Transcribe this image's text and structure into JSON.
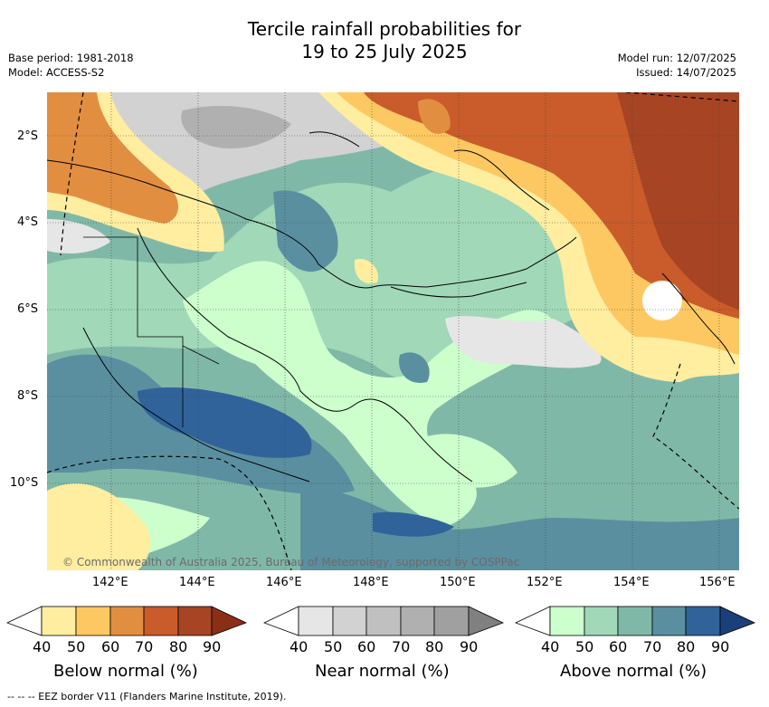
{
  "title": {
    "line1": "Tercile rainfall probabilities for",
    "line2": "19 to 25 July 2025"
  },
  "meta_left": {
    "base_period": "Base period: 1981-2018",
    "model": "Model: ACCESS-S2"
  },
  "meta_right": {
    "model_run": "Model run: 12/07/2025",
    "issued": "Issued: 14/07/2025"
  },
  "map": {
    "copyright": "© Commonwealth of Australia 2025, Bureau of Meteorology, supported by COSPPac",
    "lat_labels": [
      "2°S",
      "4°S",
      "6°S",
      "8°S",
      "10°S"
    ],
    "lon_labels": [
      "142°E",
      "144°E",
      "146°E",
      "148°E",
      "150°E",
      "152°E",
      "154°E",
      "156°E"
    ]
  },
  "colorbars": {
    "ticks": [
      "40",
      "50",
      "60",
      "70",
      "80",
      "90"
    ],
    "below": {
      "title": "Below normal (%)",
      "colors": [
        "#ffffff",
        "#ffeda0",
        "#fdc862",
        "#e28e40",
        "#c95c2a",
        "#a64424",
        "#8b2e18"
      ]
    },
    "near": {
      "title": "Near normal (%)",
      "colors": [
        "#ffffff",
        "#e6e6e6",
        "#d2d2d2",
        "#c0c0c0",
        "#b0b0b0",
        "#a0a0a0",
        "#808080"
      ]
    },
    "above": {
      "title": "Above normal (%)",
      "colors": [
        "#ffffff",
        "#ccffcc",
        "#a0d8b8",
        "#80b8a8",
        "#5a8fa0",
        "#30639a",
        "#1b3f7a"
      ]
    }
  },
  "footnote": "--  --  -- EEZ border V11 (Flanders Marine Institute, 2019)."
}
